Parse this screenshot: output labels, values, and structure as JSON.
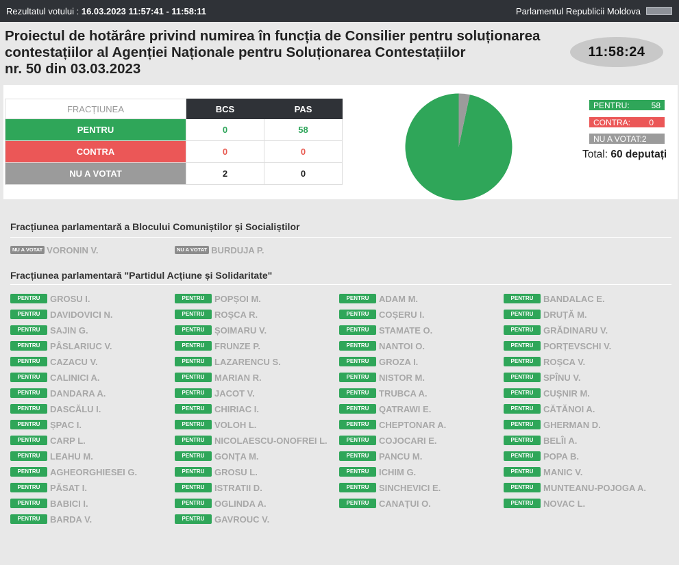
{
  "header": {
    "result_label": "Rezultatul votului : ",
    "result_time": "16.03.2023 11:57:41 - 11:58:11",
    "institution": "Parlamentul Republicii Moldova"
  },
  "title": {
    "line1": "Proiectul de hotărâre privind numirea în funcția de Consilier pentru soluționarea",
    "line2": "contestațiilor al Agenției Naționale pentru Soluționarea Contestațiilor",
    "line3": "nr. 50 din 03.03.2023"
  },
  "clock": "11:58:24",
  "table": {
    "header_label": "FRACȚIUNEA",
    "columns": [
      "BCS",
      "PAS"
    ],
    "rows": [
      {
        "label": "PENTRU",
        "values": [
          "0",
          "58"
        ]
      },
      {
        "label": "CONTRA",
        "values": [
          "0",
          "0"
        ]
      },
      {
        "label": "NU A VOTAT",
        "values": [
          "2",
          "0"
        ]
      }
    ]
  },
  "legend": {
    "pentru_label": "PENTRU:",
    "pentru_value": "58",
    "contra_label": "CONTRA:",
    "contra_value": "0",
    "nuavotat_label": "NU A VOTAT:",
    "nuavotat_value": "2",
    "total_label": "Total: ",
    "total_value": "60 deputați"
  },
  "colors": {
    "pentru": "#2fa659",
    "contra": "#eb5757",
    "nu_a_votat": "#9b9b9b",
    "header": "#2f3237"
  },
  "chart_data": {
    "type": "pie",
    "categories": [
      "PENTRU",
      "CONTRA",
      "NU A VOTAT"
    ],
    "values": [
      58,
      0,
      2
    ]
  },
  "factions": [
    {
      "name": "Fracțiunea parlamentară a Blocului Comuniștilor și Socialiștilor",
      "members": [
        {
          "vote": "NU A VOTAT",
          "name": "VORONIN V."
        },
        {
          "vote": "NU A VOTAT",
          "name": "BURDUJA P."
        }
      ]
    },
    {
      "name": "Fracțiunea parlamentară \"Partidul Acțiune și Solidaritate\"",
      "members": [
        {
          "vote": "PENTRU",
          "name": "GROSU I."
        },
        {
          "vote": "PENTRU",
          "name": "DAVIDOVICI N."
        },
        {
          "vote": "PENTRU",
          "name": "SAJIN G."
        },
        {
          "vote": "PENTRU",
          "name": "PÂSLARIUC V."
        },
        {
          "vote": "PENTRU",
          "name": "CAZACU V."
        },
        {
          "vote": "PENTRU",
          "name": "CALINICI A."
        },
        {
          "vote": "PENTRU",
          "name": "DANDARA A."
        },
        {
          "vote": "PENTRU",
          "name": "DASCĂLU I."
        },
        {
          "vote": "PENTRU",
          "name": "ȘPAC I."
        },
        {
          "vote": "PENTRU",
          "name": "CARP L."
        },
        {
          "vote": "PENTRU",
          "name": "LEAHU M."
        },
        {
          "vote": "PENTRU",
          "name": "AGHEORGHIESEI G."
        },
        {
          "vote": "PENTRU",
          "name": "PĂSAT I."
        },
        {
          "vote": "PENTRU",
          "name": "BABICI I."
        },
        {
          "vote": "PENTRU",
          "name": "BARDA V."
        },
        {
          "vote": "PENTRU",
          "name": "POPȘOI M."
        },
        {
          "vote": "PENTRU",
          "name": "ROȘCA R."
        },
        {
          "vote": "PENTRU",
          "name": "ȘOIMARU V."
        },
        {
          "vote": "PENTRU",
          "name": "FRUNZE P."
        },
        {
          "vote": "PENTRU",
          "name": "LAZARENCU S."
        },
        {
          "vote": "PENTRU",
          "name": "MARIAN R."
        },
        {
          "vote": "PENTRU",
          "name": "JACOT V."
        },
        {
          "vote": "PENTRU",
          "name": "CHIRIAC I."
        },
        {
          "vote": "PENTRU",
          "name": "VOLOH L."
        },
        {
          "vote": "PENTRU",
          "name": "NICOLAESCU-ONOFREI L."
        },
        {
          "vote": "PENTRU",
          "name": "GONȚA M."
        },
        {
          "vote": "PENTRU",
          "name": "GROSU L."
        },
        {
          "vote": "PENTRU",
          "name": "ISTRATII D."
        },
        {
          "vote": "PENTRU",
          "name": "OGLINDA A."
        },
        {
          "vote": "PENTRU",
          "name": "GAVROUC V."
        },
        {
          "vote": "PENTRU",
          "name": "ADAM M."
        },
        {
          "vote": "PENTRU",
          "name": "COȘERU I."
        },
        {
          "vote": "PENTRU",
          "name": "STAMATE O."
        },
        {
          "vote": "PENTRU",
          "name": "NANTOI O."
        },
        {
          "vote": "PENTRU",
          "name": "GROZA I."
        },
        {
          "vote": "PENTRU",
          "name": "NISTOR M."
        },
        {
          "vote": "PENTRU",
          "name": "TRUBCA A."
        },
        {
          "vote": "PENTRU",
          "name": "QATRAWI E."
        },
        {
          "vote": "PENTRU",
          "name": "CHEPTONAR A."
        },
        {
          "vote": "PENTRU",
          "name": "COJOCARI E."
        },
        {
          "vote": "PENTRU",
          "name": "PANCU M."
        },
        {
          "vote": "PENTRU",
          "name": "ICHIM G."
        },
        {
          "vote": "PENTRU",
          "name": "SINCHEVICI E."
        },
        {
          "vote": "PENTRU",
          "name": "CANAȚUI O."
        },
        {
          "vote": "PENTRU",
          "name": "BANDALAC E."
        },
        {
          "vote": "PENTRU",
          "name": "DRUȚĂ M."
        },
        {
          "vote": "PENTRU",
          "name": "GRĂDINARU V."
        },
        {
          "vote": "PENTRU",
          "name": "PORȚEVSCHI V."
        },
        {
          "vote": "PENTRU",
          "name": "ROȘCA V."
        },
        {
          "vote": "PENTRU",
          "name": "SPÎNU V."
        },
        {
          "vote": "PENTRU",
          "name": "CUȘNIR M."
        },
        {
          "vote": "PENTRU",
          "name": "CĂTĂNOI A."
        },
        {
          "vote": "PENTRU",
          "name": "GHERMAN D."
        },
        {
          "vote": "PENTRU",
          "name": "BELÎI A."
        },
        {
          "vote": "PENTRU",
          "name": "POPA B."
        },
        {
          "vote": "PENTRU",
          "name": "MANIC V."
        },
        {
          "vote": "PENTRU",
          "name": "MUNTEANU-POJOGA A."
        },
        {
          "vote": "PENTRU",
          "name": "NOVAC L."
        }
      ]
    }
  ]
}
